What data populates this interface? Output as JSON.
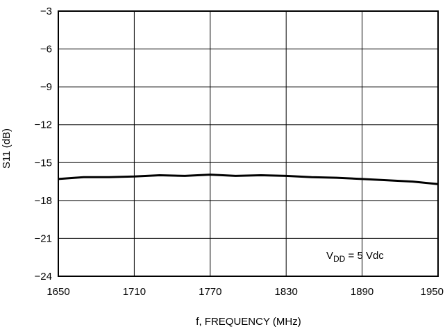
{
  "chart_data": {
    "type": "line",
    "xlabel": "f, FREQUENCY (MHz)",
    "ylabel": "S11 (dB)",
    "xlim": [
      1650,
      1950
    ],
    "ylim": [
      -24,
      -3
    ],
    "x_ticks": [
      1650,
      1710,
      1770,
      1830,
      1890,
      1950
    ],
    "x_tick_labels": [
      "1650",
      "1710",
      "1770",
      "1830",
      "1890",
      "1950"
    ],
    "y_ticks": [
      -3,
      -6,
      -9,
      -12,
      -15,
      -18,
      -21,
      -24
    ],
    "y_tick_labels": [
      "−3",
      "−6",
      "−9",
      "−12",
      "−15",
      "−18",
      "−21",
      "−24"
    ],
    "grid": true,
    "annotation": {
      "prefix": "V",
      "subscript": "DD",
      "suffix": " = 5 Vdc"
    },
    "series": [
      {
        "x": [
          1650,
          1670,
          1690,
          1710,
          1730,
          1750,
          1770,
          1790,
          1810,
          1830,
          1850,
          1870,
          1890,
          1910,
          1930,
          1950
        ],
        "values": [
          -16.3,
          -16.15,
          -16.15,
          -16.1,
          -16.0,
          -16.05,
          -15.95,
          -16.05,
          -16.0,
          -16.05,
          -16.15,
          -16.2,
          -16.3,
          -16.4,
          -16.5,
          -16.7
        ]
      }
    ]
  }
}
